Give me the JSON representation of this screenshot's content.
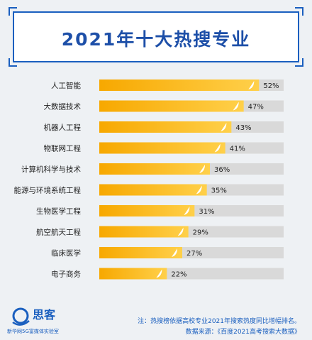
{
  "title": "2021年十大热搜专业",
  "chart_data": {
    "type": "bar",
    "orientation": "horizontal",
    "categories": [
      "人工智能",
      "大数据技术",
      "机器人工程",
      "物联网工程",
      "计算机科学与技术",
      "能源与环境系统工程",
      "生物医学工程",
      "航空航天工程",
      "临床医学",
      "电子商务"
    ],
    "values": [
      52,
      47,
      43,
      41,
      36,
      35,
      31,
      29,
      27,
      22
    ],
    "value_labels": [
      "52%",
      "47%",
      "43%",
      "41%",
      "36%",
      "35%",
      "31%",
      "29%",
      "27%",
      "22%"
    ],
    "xlim": [
      0,
      60
    ],
    "grid": false,
    "legend": "none"
  },
  "colors": {
    "bar_start": "#f7a800",
    "bar_end": "#ffd04a",
    "track": "#d9d9d9",
    "accent": "#1a5fbf",
    "label": "#222222"
  },
  "footer": {
    "logo_text": "思客",
    "logo_sub": "新华网5G富媒体实验室",
    "note_line1": "注：热搜榜依据高校专业2021年搜索热度同比增幅排名。",
    "note_line2": "数据来源：《百度2021高考搜索大数据》"
  }
}
